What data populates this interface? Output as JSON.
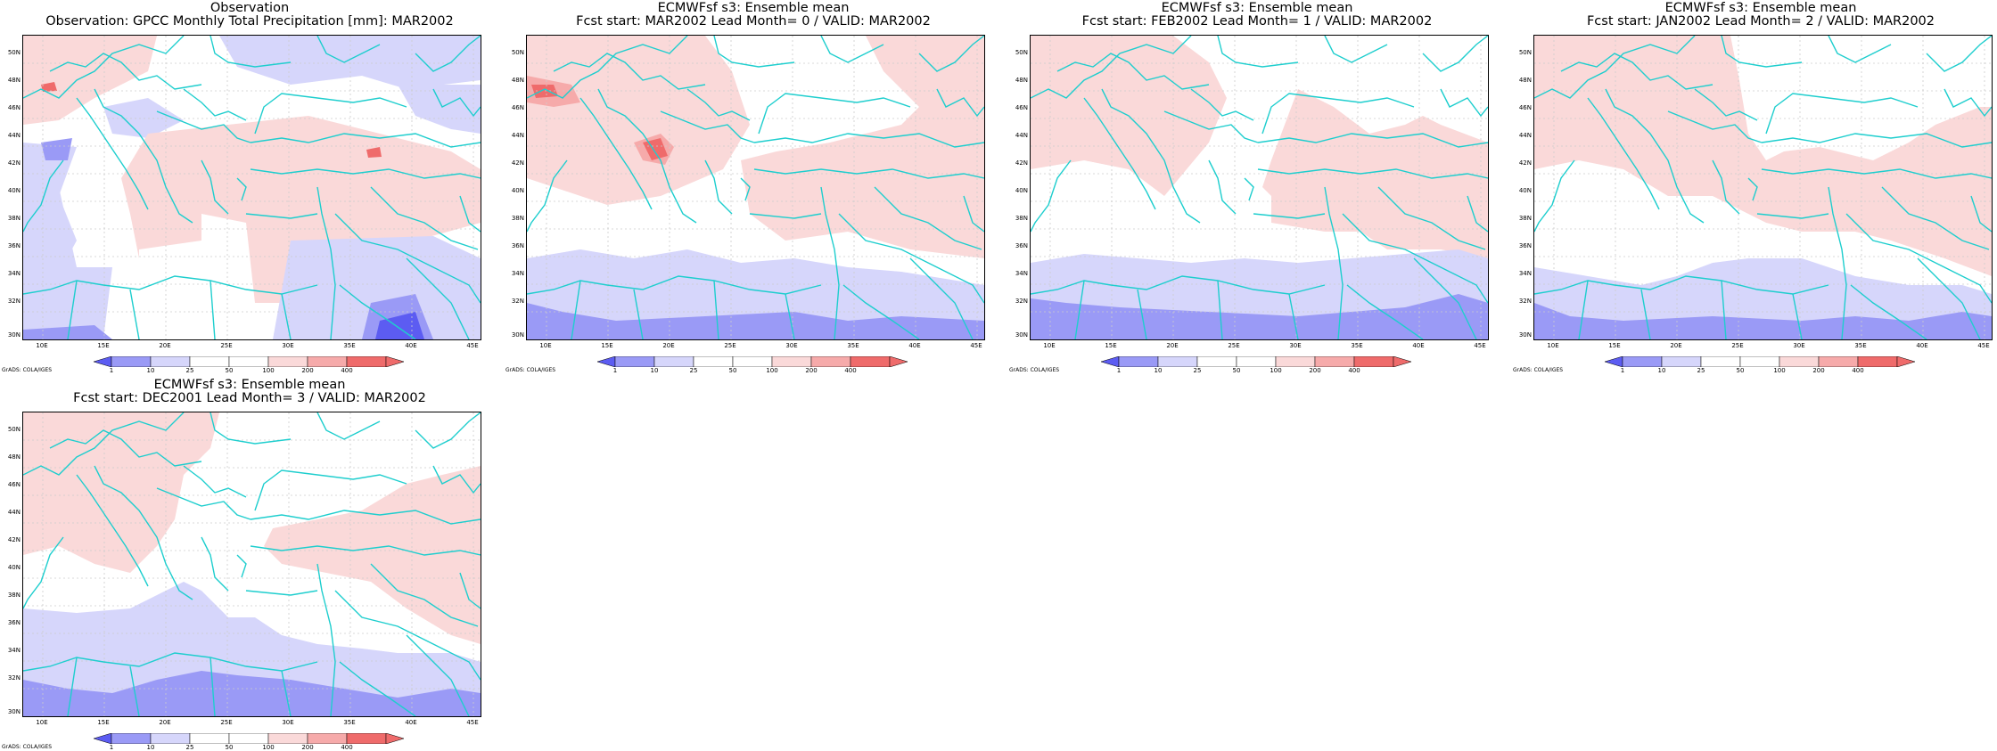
{
  "panels": [
    {
      "title1": "Observation",
      "title2": "Observation: GPCC Monthly Total Precipitation [mm]: MAR2002"
    },
    {
      "title1": "ECMWFsf s3: Ensemble mean",
      "title2": "Fcst start: MAR2002   Lead Month= 0 / VALID: MAR2002"
    },
    {
      "title1": "ECMWFsf s3: Ensemble mean",
      "title2": "Fcst start: FEB2002   Lead Month= 1 / VALID: MAR2002"
    },
    {
      "title1": "ECMWFsf s3: Ensemble mean",
      "title2": "Fcst start: JAN2002   Lead Month= 2 / VALID: MAR2002"
    },
    {
      "title1": "ECMWFsf s3: Ensemble mean",
      "title2": "Fcst start: DEC2001   Lead Month= 3 / VALID: MAR2002"
    }
  ],
  "lat_labels": [
    "50N",
    "48N",
    "46N",
    "44N",
    "42N",
    "40N",
    "38N",
    "36N",
    "34N",
    "32N",
    "30N"
  ],
  "lon_labels": [
    "10E",
    "15E",
    "20E",
    "25E",
    "30E",
    "35E",
    "40E",
    "45E"
  ],
  "colorbar_labels": [
    "1",
    "10",
    "25",
    "50",
    "100",
    "200",
    "400"
  ],
  "credit": "GrADS: COLA/IGES",
  "colors": {
    "blue_dark": "#5c5cf2",
    "blue_mid": "#9a9af6",
    "blue_light": "#d6d6fb",
    "red_light": "#fad9d9",
    "red_mid": "#f6aaaa",
    "red_dark": "#ef6b6b",
    "coast": "#1ecece"
  }
}
